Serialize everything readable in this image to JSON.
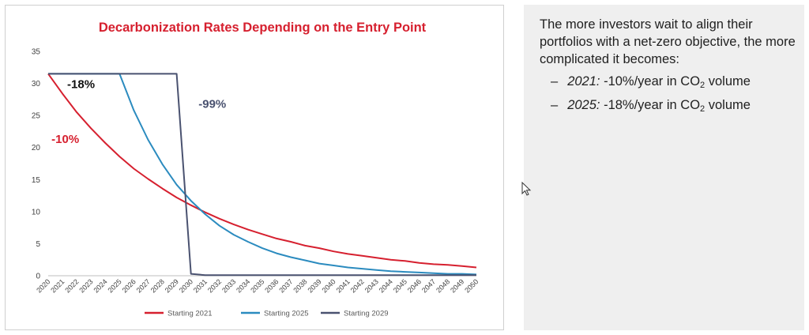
{
  "chart_data": {
    "type": "line",
    "title": "Decarbonization Rates Depending on the Entry Point",
    "x": [
      2020,
      2021,
      2022,
      2023,
      2024,
      2025,
      2026,
      2027,
      2028,
      2029,
      2030,
      2031,
      2032,
      2033,
      2034,
      2035,
      2036,
      2037,
      2038,
      2039,
      2040,
      2041,
      2042,
      2043,
      2044,
      2045,
      2046,
      2047,
      2048,
      2049,
      2050
    ],
    "ylim": [
      0,
      35
    ],
    "yticks": [
      0,
      5,
      10,
      15,
      20,
      25,
      30,
      35
    ],
    "grid": false,
    "legend_position": "bottom",
    "series": [
      {
        "name": "Starting 2021",
        "color": "#d6202f",
        "values": [
          31.5,
          28.4,
          25.5,
          23.0,
          20.7,
          18.6,
          16.7,
          15.1,
          13.6,
          12.2,
          11.0,
          9.9,
          8.9,
          8.0,
          7.2,
          6.5,
          5.8,
          5.3,
          4.7,
          4.3,
          3.8,
          3.4,
          3.1,
          2.8,
          2.5,
          2.3,
          2.0,
          1.8,
          1.7,
          1.5,
          1.3
        ]
      },
      {
        "name": "Starting 2025",
        "color": "#2b8bbf",
        "values": [
          31.5,
          31.5,
          31.5,
          31.5,
          31.5,
          31.5,
          25.8,
          21.2,
          17.4,
          14.2,
          11.7,
          9.6,
          7.8,
          6.4,
          5.3,
          4.3,
          3.5,
          2.9,
          2.4,
          1.9,
          1.6,
          1.3,
          1.1,
          0.9,
          0.7,
          0.6,
          0.5,
          0.4,
          0.3,
          0.3,
          0.2
        ]
      },
      {
        "name": "Starting 2029",
        "color": "#4a5270",
        "values": [
          31.5,
          31.5,
          31.5,
          31.5,
          31.5,
          31.5,
          31.5,
          31.5,
          31.5,
          31.5,
          0.3,
          0.1,
          0.1,
          0.1,
          0.1,
          0.1,
          0.1,
          0.1,
          0.1,
          0.1,
          0.1,
          0.1,
          0.1,
          0.1,
          0.1,
          0.1,
          0.1,
          0.1,
          0.1,
          0.1,
          0.1
        ]
      }
    ],
    "annotations": [
      {
        "text": "-18%",
        "color": "#111111",
        "x": 2022.3,
        "y": 29.3
      },
      {
        "text": "-10%",
        "color": "#d6202f",
        "x": 2021.2,
        "y": 20.7
      },
      {
        "text": "-99%",
        "color": "#4a5270",
        "x": 2031.5,
        "y": 26.2
      }
    ]
  },
  "side_panel": {
    "intro": "The more investors wait to align their portfolios with a net-zero objective, the more complicated it becomes:",
    "bullets": [
      {
        "dash": "–",
        "year": "2021:",
        "rate": " -10%/year in CO",
        "sub": "2",
        "tail": " volume"
      },
      {
        "dash": "–",
        "year": "2025:",
        "rate": " -18%/year in CO",
        "sub": "2",
        "tail": " volume"
      }
    ]
  }
}
